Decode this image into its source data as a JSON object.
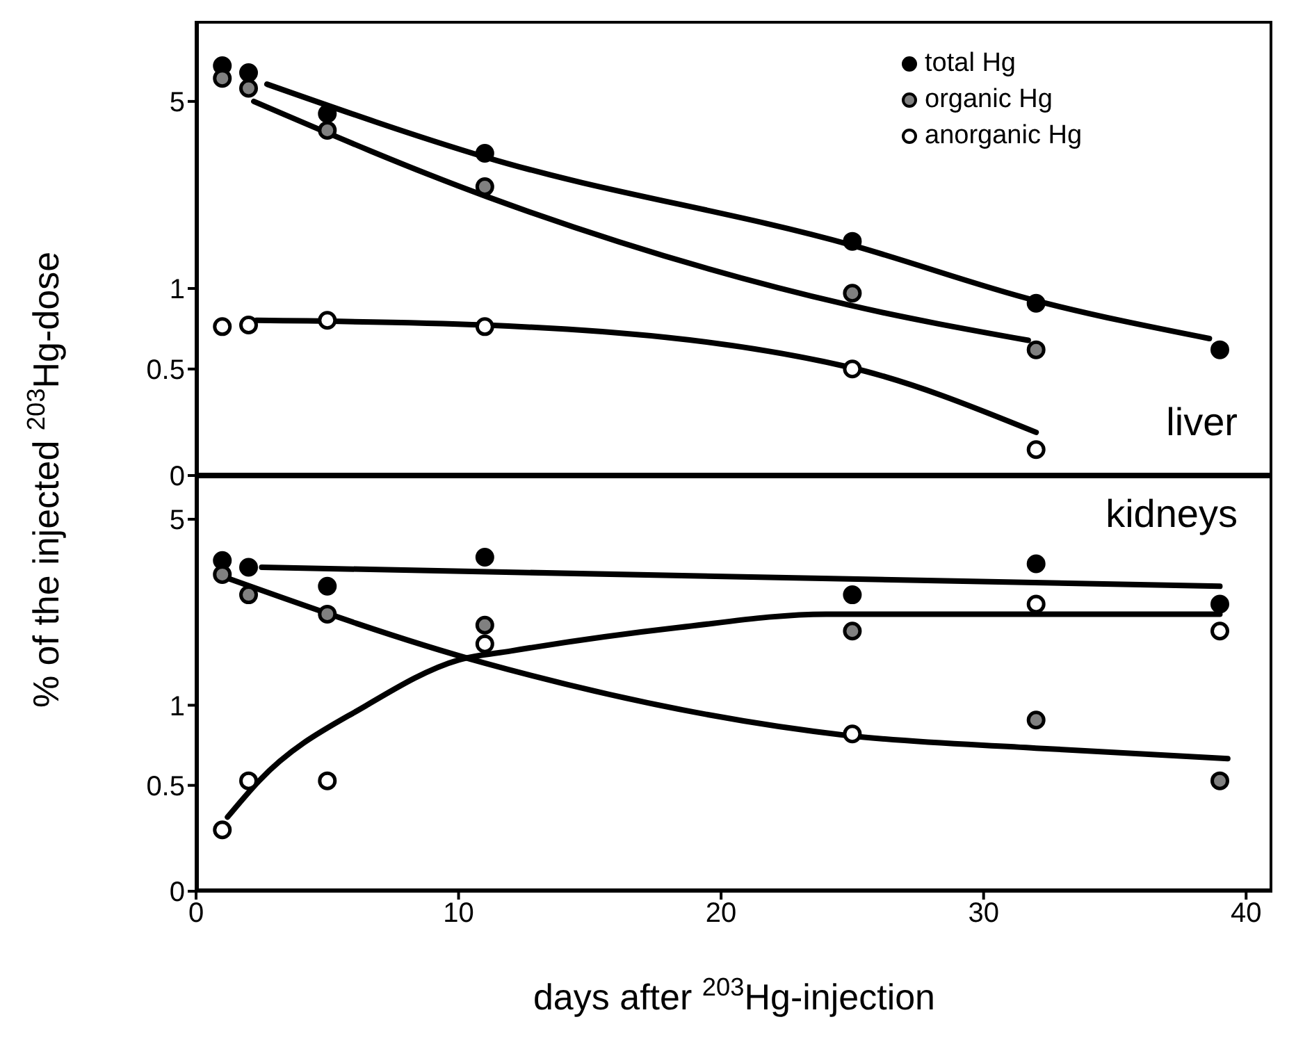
{
  "chart_data": [
    {
      "type": "scatter",
      "ylabel": "% of the injected $^{203}$Hg-dose",
      "annotations": [
        "liver"
      ],
      "xlim": [
        0,
        41
      ],
      "xticks": [
        0,
        10,
        20,
        30,
        40
      ],
      "ylim": [
        0.2,
        10
      ],
      "yticks": [
        {
          "value": 0.2,
          "label": "0"
        },
        0.5,
        1,
        5
      ],
      "log": "y",
      "tick_labels": "y",
      "legend": "top right",
      "marker": "circle",
      "series": [
        {
          "name": "total Hg",
          "color": "#000000",
          "x": [
            1,
            2,
            5,
            11,
            25,
            32,
            39
          ],
          "values": [
            6.8,
            6.4,
            4.5,
            3.2,
            1.5,
            0.88,
            0.59
          ]
        },
        {
          "name": "organic Hg",
          "color": "#808080",
          "x": [
            1,
            2,
            5,
            11,
            25,
            32
          ],
          "values": [
            6.1,
            5.6,
            3.9,
            2.4,
            0.96,
            0.59
          ]
        },
        {
          "name": "anorganic Hg",
          "color": "#ffffff",
          "x": [
            1,
            2,
            5,
            11,
            25,
            32
          ],
          "values": [
            0.72,
            0.73,
            0.76,
            0.72,
            0.5,
            0.25
          ]
        },
        {
          "type": "line",
          "marker": "none",
          "color": "#000000",
          "x": [
            2.7,
            11,
            25,
            32,
            38.6
          ],
          "values": [
            5.8,
            3.1,
            1.45,
            0.9,
            0.65
          ]
        },
        {
          "type": "line",
          "marker": "none",
          "color": "#000000",
          "x": [
            2.2,
            11.1,
            24.8,
            31.7
          ],
          "values": [
            5,
            2.2,
            0.87,
            0.64
          ]
        },
        {
          "type": "line",
          "marker": "none",
          "color": "#000000",
          "x": [
            2.3,
            11,
            24.8,
            32
          ],
          "values": [
            0.76,
            0.73,
            0.51,
            0.29
          ]
        }
      ]
    },
    {
      "type": "scatter",
      "xlabel": "days after $^{203}$Hg-injection",
      "annotations": [
        "kidneys"
      ],
      "xlim": [
        0,
        41
      ],
      "xticks": [
        0,
        10,
        20,
        30,
        40
      ],
      "ylim": [
        0.2,
        7.3
      ],
      "yticks": [
        {
          "value": 0.2,
          "label": "0"
        },
        0.5,
        1,
        5
      ],
      "log": "y",
      "marker": "circle",
      "series": [
        {
          "color": "#000000",
          "x": [
            1,
            2,
            5,
            11,
            25,
            32,
            39
          ],
          "values": [
            3.5,
            3.3,
            2.8,
            3.6,
            2.6,
            3.4,
            2.4
          ]
        },
        {
          "color": "#808080",
          "x": [
            1,
            2,
            5,
            11,
            25,
            32,
            39
          ],
          "values": [
            3.1,
            2.6,
            2.2,
            2.0,
            1.9,
            0.88,
            0.52
          ]
        },
        {
          "color": "#ffffff",
          "x": [
            1,
            2,
            5,
            11,
            25,
            32,
            39
          ],
          "values": [
            0.34,
            0.52,
            0.52,
            1.7,
            0.78,
            2.4,
            1.9
          ]
        },
        {
          "type": "line",
          "marker": "none",
          "color": "#000000",
          "x": [
            2.5,
            39
          ],
          "values": [
            3.3,
            2.8
          ]
        },
        {
          "type": "line",
          "marker": "none",
          "color": "#000000",
          "x": [
            1.2,
            11,
            24.8,
            32,
            39.3
          ],
          "values": [
            3.0,
            1.44,
            0.77,
            0.69,
            0.63
          ]
        },
        {
          "type": "line",
          "marker": "none",
          "color": "#000000",
          "x": [
            1.2,
            2.4,
            6.5,
            10,
            12,
            18.4,
            24,
            39
          ],
          "values": [
            0.38,
            0.52,
            1.0,
            1.48,
            1.6,
            1.96,
            2.2,
            2.2
          ]
        }
      ]
    }
  ]
}
